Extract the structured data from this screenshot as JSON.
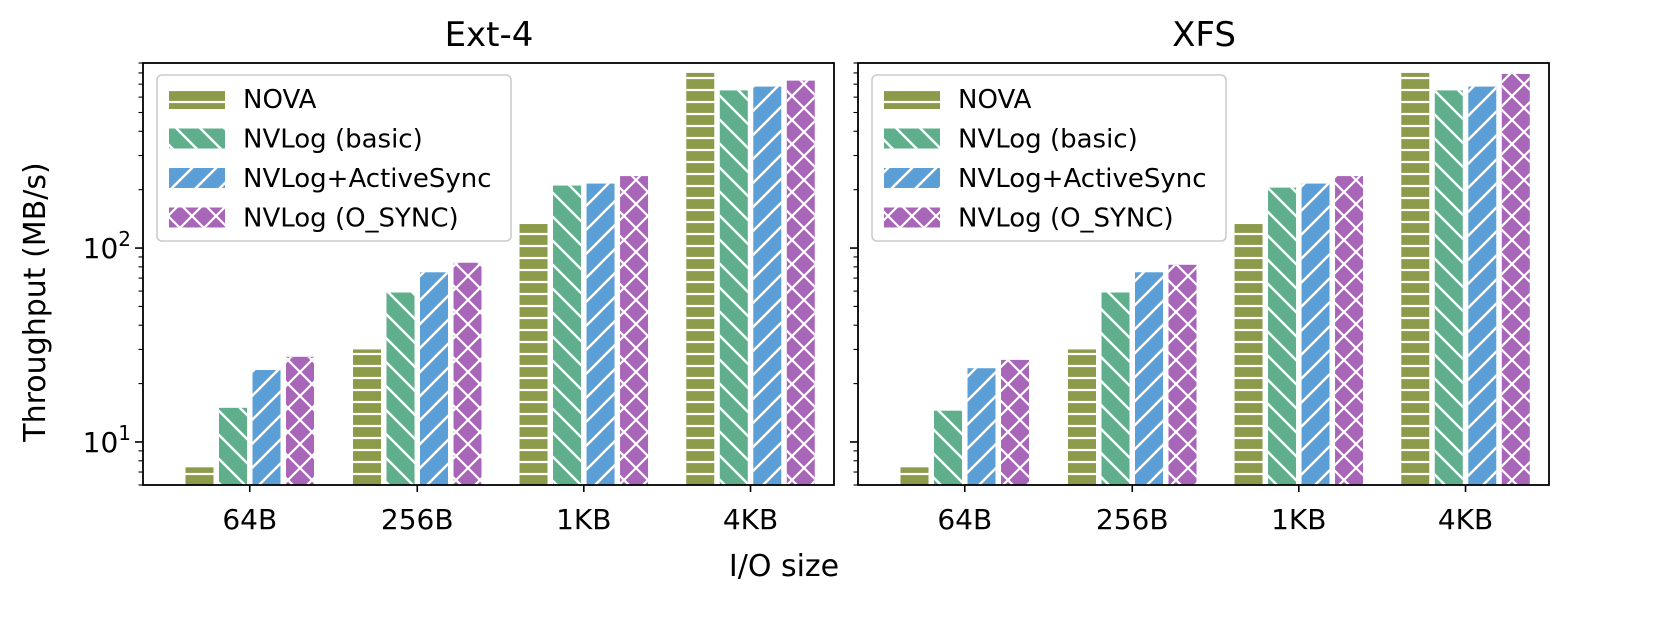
{
  "colors": {
    "NOVA": "#8c9b4a",
    "NVLog (basic)": "#5fae8c",
    "NVLog+ActiveSync": "#5b9fd6",
    "NVLog (O_SYNC)": "#a866b8",
    "hatch": "#ffffff",
    "axis": "#000000"
  },
  "figure": {
    "xlabel": "I/O size",
    "ylabel": "Throughput (MB/s)"
  },
  "chart_data": [
    {
      "type": "bar",
      "title": "Ext-4",
      "xlabel": "I/O size",
      "ylabel": "Throughput (MB/s)",
      "yscale": "log",
      "ylim": [
        6,
        900
      ],
      "yticks": [
        {
          "value": 10,
          "base": "10",
          "exp": "1"
        },
        {
          "value": 100,
          "base": "10",
          "exp": "2"
        }
      ],
      "legend_position": "top-left",
      "categories": [
        "64B",
        "256B",
        "1KB",
        "4KB"
      ],
      "series": [
        {
          "name": "NOVA",
          "hatch": "horizontal",
          "values": [
            7.4,
            30,
            133,
            800
          ]
        },
        {
          "name": "NVLog (basic)",
          "hatch": "back-diagonal",
          "values": [
            15,
            59,
            210,
            650
          ]
        },
        {
          "name": "NVLog+ActiveSync",
          "hatch": "forward-diagonal",
          "values": [
            23.5,
            75,
            215,
            680
          ]
        },
        {
          "name": "NVLog (O_SYNC)",
          "hatch": "cross",
          "values": [
            27.5,
            84,
            235,
            730
          ]
        }
      ]
    },
    {
      "type": "bar",
      "title": "XFS",
      "xlabel": "I/O size",
      "ylabel": "",
      "yscale": "log",
      "ylim": [
        6,
        900
      ],
      "yticks": [],
      "legend_position": "top-left",
      "categories": [
        "64B",
        "256B",
        "1KB",
        "4KB"
      ],
      "series": [
        {
          "name": "NOVA",
          "hatch": "horizontal",
          "values": [
            7.4,
            30,
            133,
            800
          ]
        },
        {
          "name": "NVLog (basic)",
          "hatch": "back-diagonal",
          "values": [
            14.5,
            59,
            205,
            650
          ]
        },
        {
          "name": "NVLog+ActiveSync",
          "hatch": "forward-diagonal",
          "values": [
            24,
            75,
            215,
            680
          ]
        },
        {
          "name": "NVLog (O_SYNC)",
          "hatch": "cross",
          "values": [
            26.5,
            82,
            235,
            790
          ]
        }
      ]
    }
  ]
}
